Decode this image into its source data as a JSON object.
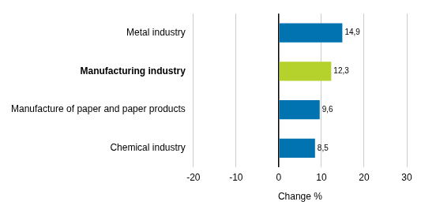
{
  "chart_data": {
    "type": "bar",
    "orientation": "horizontal",
    "categories": [
      "Metal industry",
      "Manufacturing industry",
      "Manufacture of paper and paper products",
      "Chemical industry"
    ],
    "values": [
      14.9,
      12.3,
      9.6,
      8.5
    ],
    "value_labels": [
      "14,9",
      "12,3",
      "9,6",
      "8,5"
    ],
    "colors": [
      "#0073b0",
      "#b4d22b",
      "#0073b0",
      "#0073b0"
    ],
    "x_label": "Change %",
    "xlim": [
      -20,
      30
    ],
    "xticks": [
      -20,
      -10,
      0,
      10,
      20,
      30
    ],
    "grid": true,
    "data_labels": true
  }
}
